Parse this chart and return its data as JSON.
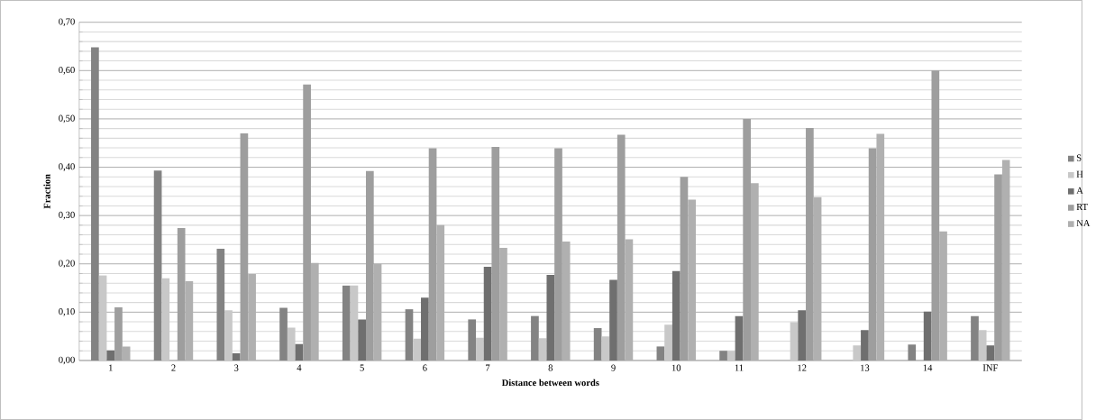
{
  "chart_data": {
    "type": "bar",
    "xlabel": "Distance between words",
    "ylabel": "Fraction",
    "categories": [
      "1",
      "2",
      "3",
      "4",
      "5",
      "6",
      "7",
      "8",
      "9",
      "10",
      "11",
      "12",
      "13",
      "14",
      "INF"
    ],
    "series": [
      {
        "name": "S",
        "color": "#838383",
        "values": [
          0.648,
          0.393,
          0.231,
          0.109,
          0.155,
          0.106,
          0.085,
          0.092,
          0.067,
          0.029,
          0.02,
          0,
          0,
          0.033,
          0.092
        ]
      },
      {
        "name": "H",
        "color": "#c8c8c8",
        "values": [
          0.176,
          0.17,
          0.104,
          0.068,
          0.155,
          0.045,
          0.047,
          0.046,
          0.05,
          0.074,
          0.02,
          0.079,
          0.031,
          0,
          0.063
        ]
      },
      {
        "name": "A",
        "color": "#6f6f6f",
        "values": [
          0.021,
          0,
          0.015,
          0.034,
          0.085,
          0.13,
          0.194,
          0.177,
          0.167,
          0.185,
          0.092,
          0.104,
          0.063,
          0.101,
          0.031
        ]
      },
      {
        "name": "RT",
        "color": "#9e9e9e",
        "values": [
          0.11,
          0.274,
          0.47,
          0.571,
          0.392,
          0.439,
          0.442,
          0.439,
          0.467,
          0.38,
          0.5,
          0.481,
          0.439,
          0.6,
          0.385
        ]
      },
      {
        "name": "NA",
        "color": "#b0b0b0",
        "values": [
          0.029,
          0.164,
          0.179,
          0.202,
          0.2,
          0.28,
          0.233,
          0.246,
          0.251,
          0.333,
          0.367,
          0.338,
          0.469,
          0.267,
          0.415
        ]
      }
    ],
    "ylim": [
      0,
      0.7
    ],
    "yticks": [
      {
        "value": 0,
        "label": "0,00"
      },
      {
        "value": 0.1,
        "label": "0,10"
      },
      {
        "value": 0.2,
        "label": "0,20"
      },
      {
        "value": 0.3,
        "label": "0,30"
      },
      {
        "value": 0.4,
        "label": "0,40"
      },
      {
        "value": 0.5,
        "label": "0,50"
      },
      {
        "value": 0.6,
        "label": "0,60"
      },
      {
        "value": 0.7,
        "label": "0,70"
      }
    ],
    "grid": "y",
    "legend": "right"
  }
}
